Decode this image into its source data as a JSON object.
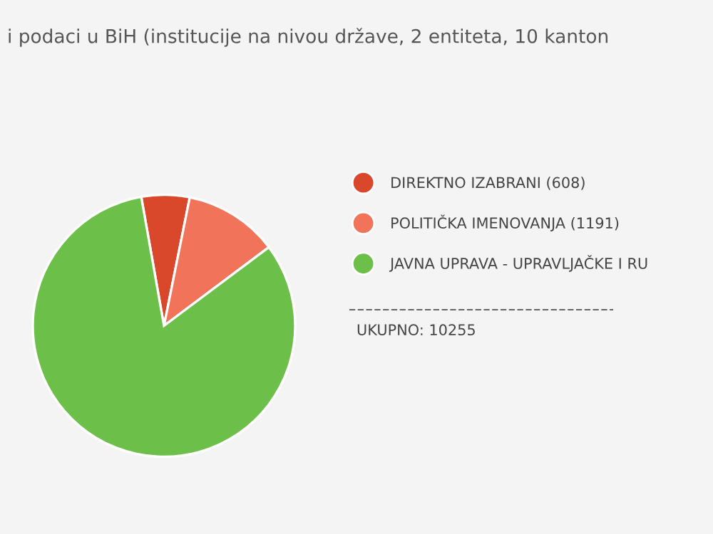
{
  "chart_data": {
    "type": "pie",
    "title": "i podaci u BiH (institucije na nivou države, 2 entiteta, 10 kanton",
    "categories": [
      "DIREKTNO IZABRANI (608)",
      "POLITIČKA IMENOVANJA (1191)",
      "JAVNA UPRAVA - UPRAVLJAČKE I RU"
    ],
    "values": [
      608,
      1191,
      8456
    ],
    "colors": [
      "#d9482b",
      "#f0735a",
      "#6cc04a"
    ],
    "legend": "right",
    "annotations": [
      "UKUPNO: 10255"
    ]
  }
}
